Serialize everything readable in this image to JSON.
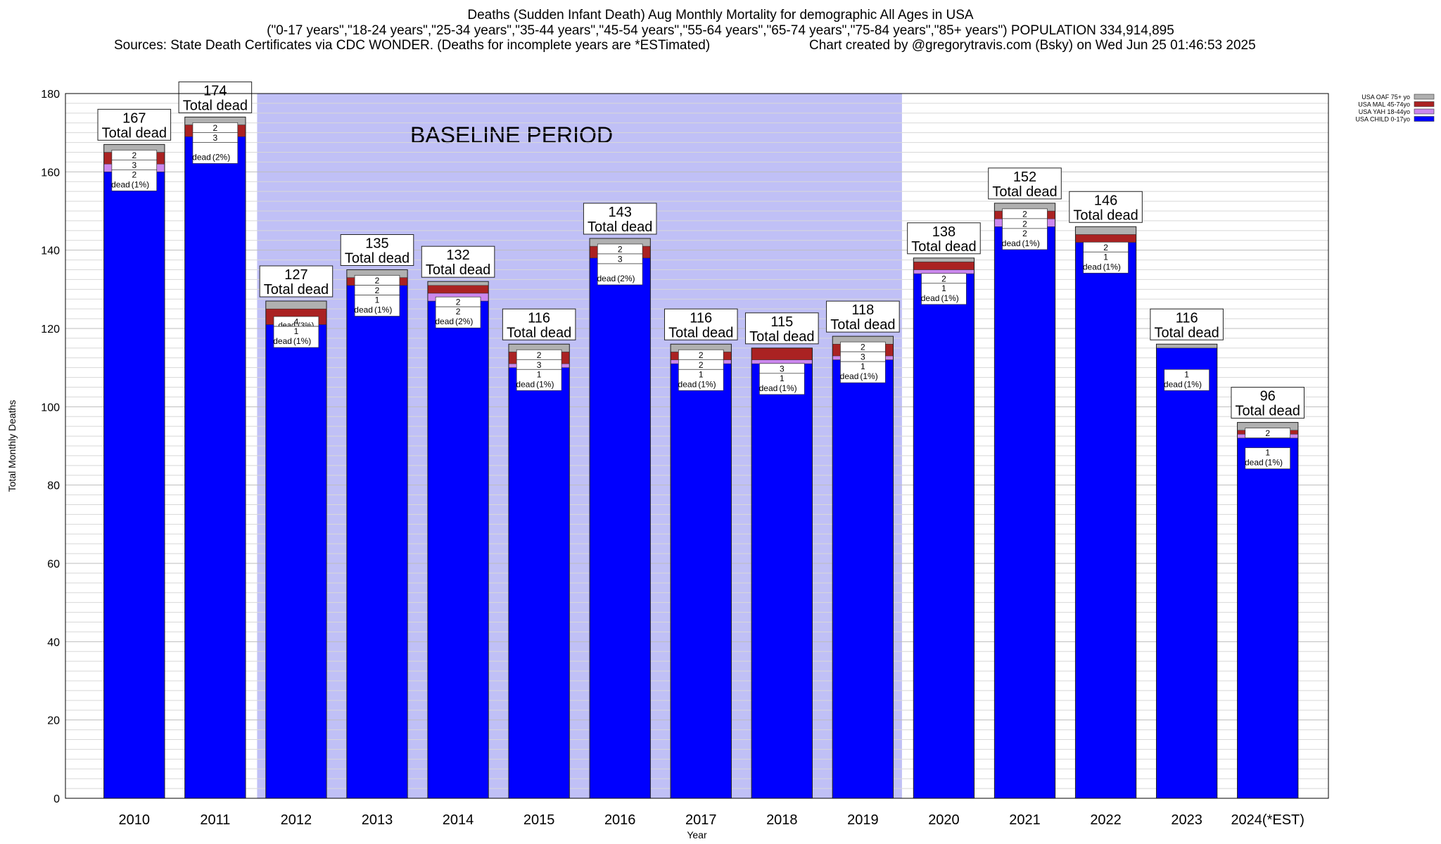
{
  "header": {
    "line1": "Deaths (Sudden Infant Death) Aug Monthly Mortality for demographic All Ages in USA",
    "line2": "(\"0-17 years\",\"18-24 years\",\"25-34 years\",\"35-44 years\",\"45-54 years\",\"55-64 years\",\"65-74 years\",\"75-84 years\",\"85+ years\") POPULATION 334,914,895",
    "line3_left": "Sources: State Death Certificates via CDC WONDER. (Deaths for incomplete years are *ESTimated)",
    "line3_right": "Chart created by @gregorytravis.com (Bsky) on Wed Jun 25 01:46:53 2025"
  },
  "chart_data": {
    "type": "bar",
    "stacked": true,
    "xlabel": "Year",
    "ylabel": "Total Monthly Deaths",
    "ylim": [
      0,
      180
    ],
    "yticks": [
      0,
      20,
      40,
      60,
      80,
      100,
      120,
      140,
      160,
      180
    ],
    "grid": true,
    "legend_position": "top-right",
    "categories": [
      "2010",
      "2011",
      "2012",
      "2013",
      "2014",
      "2015",
      "2016",
      "2017",
      "2018",
      "2019",
      "2020",
      "2021",
      "2022",
      "2023",
      "2024(*EST)"
    ],
    "totals": [
      167,
      174,
      127,
      135,
      132,
      116,
      143,
      116,
      115,
      118,
      138,
      152,
      146,
      116,
      96
    ],
    "total_label": "Total dead",
    "series": [
      {
        "name": "USA CHILD 0-17yo",
        "color": "#0000ff",
        "values": [
          160,
          169,
          121,
          131,
          127,
          110,
          138,
          111,
          111,
          112,
          134,
          146,
          142,
          115,
          92
        ]
      },
      {
        "name": "USA YAH 18-44yo",
        "color": "#cc88ee",
        "values": [
          2,
          0,
          0,
          0,
          2,
          1,
          0,
          1,
          1,
          1,
          1,
          2,
          0,
          0,
          1
        ]
      },
      {
        "name": "USA MAL 45-74yo",
        "color": "#aa2222",
        "values": [
          3,
          3,
          4,
          2,
          2,
          3,
          3,
          2,
          3,
          3,
          2,
          2,
          2,
          0,
          1
        ]
      },
      {
        "name": "USA OAF 75+ yo",
        "color": "#b0b0b0",
        "values": [
          2,
          2,
          2,
          2,
          1,
          2,
          2,
          2,
          0,
          2,
          1,
          2,
          2,
          1,
          2
        ]
      }
    ],
    "segment_labels": [
      {
        "a": "2",
        "b": "3",
        "c": "2",
        "d": "dead",
        "e": "(1%)"
      },
      {
        "a": "2",
        "b": "3",
        "c": "",
        "d": "dead",
        "e": "(2%)"
      },
      {
        "a": "",
        "b": "4",
        "c": "1",
        "d": "dead",
        "e": "(1%)",
        "f": "dead (3%)"
      },
      {
        "a": "2",
        "b": "2",
        "c": "1",
        "d": "dead",
        "e": "(1%)"
      },
      {
        "a": "",
        "b": "2",
        "c": "2",
        "d": "dead",
        "e": "(2%)"
      },
      {
        "a": "2",
        "b": "3",
        "c": "1",
        "d": "dead",
        "e": "(1%)"
      },
      {
        "a": "2",
        "b": "3",
        "c": "",
        "d": "dead",
        "e": "(2%)"
      },
      {
        "a": "2",
        "b": "2",
        "c": "1",
        "d": "dead",
        "e": "(1%)"
      },
      {
        "a": "",
        "b": "3",
        "c": "1",
        "d": "dead",
        "e": "(1%)"
      },
      {
        "a": "2",
        "b": "3",
        "c": "1",
        "d": "dead",
        "e": "(1%)"
      },
      {
        "a": "",
        "b": "2",
        "c": "1",
        "d": "dead",
        "e": "(1%)"
      },
      {
        "a": "2",
        "b": "2",
        "c": "2",
        "d": "dead",
        "e": "(1%)"
      },
      {
        "a": "",
        "b": "2",
        "c": "1",
        "d": "dead",
        "e": "(1%)"
      },
      {
        "a": "",
        "b": "",
        "c": "1",
        "d": "dead",
        "e": "(1%)"
      },
      {
        "a": "2",
        "b": "",
        "c": "1",
        "d": "dead",
        "e": "(1%)"
      }
    ],
    "annotations": [
      {
        "text": "BASELINE PERIOD",
        "from": "2012",
        "to": "2019",
        "color": "#c0c0f6"
      }
    ]
  }
}
